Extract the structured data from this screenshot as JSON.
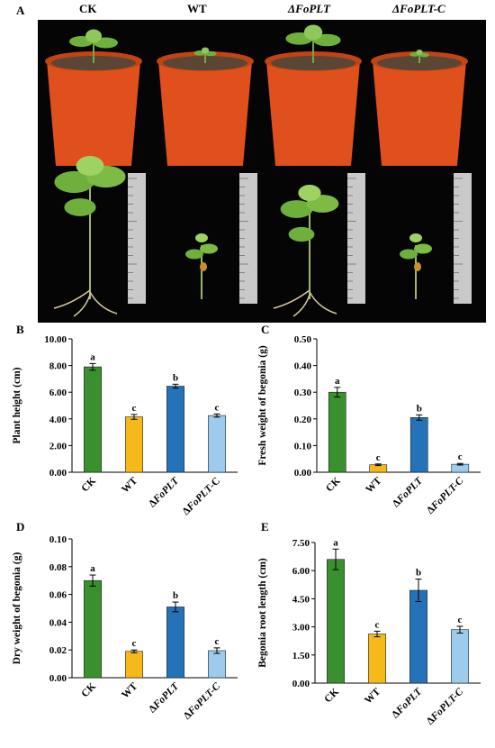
{
  "panelA": {
    "letter": "A",
    "labels": [
      "CK",
      "WT",
      "ΔFoPLT",
      "ΔFoPLT-C"
    ],
    "colors": {
      "background": "#050505",
      "pot": "#e0501c",
      "soil": "#5a4634",
      "leaf": "#6fb03c",
      "ruler": "#c9c9c9"
    }
  },
  "chart_data": [
    {
      "letter": "B",
      "type": "bar",
      "categories": [
        "CK",
        "WT",
        "ΔFoPLT",
        "ΔFoPLT-C"
      ],
      "values": [
        7.9,
        4.15,
        6.45,
        4.25
      ],
      "errors": [
        0.25,
        0.18,
        0.15,
        0.12
      ],
      "letters": [
        "a",
        "c",
        "b",
        "c"
      ],
      "colors": [
        "#3a8f2f",
        "#f6b91a",
        "#2473b8",
        "#9dcbee"
      ],
      "ylabel": "Plant height  (cm)",
      "ylim": [
        0,
        10
      ],
      "yticks": [
        "0.00",
        "2.00",
        "4.00",
        "6.00",
        "8.00",
        "10.00"
      ]
    },
    {
      "letter": "C",
      "type": "bar",
      "categories": [
        "CK",
        "WT",
        "ΔFoPLT",
        "ΔFoPLT-C"
      ],
      "values": [
        0.3,
        0.028,
        0.205,
        0.03
      ],
      "errors": [
        0.018,
        0.003,
        0.01,
        0.003
      ],
      "letters": [
        "a",
        "c",
        "b",
        "c"
      ],
      "colors": [
        "#3a8f2f",
        "#f6b91a",
        "#2473b8",
        "#9dcbee"
      ],
      "ylabel": "Fresh weight of begonia (g)",
      "ylim": [
        0,
        0.5
      ],
      "yticks": [
        "0.00",
        "0.10",
        "0.20",
        "0.30",
        "0.40",
        "0.50"
      ]
    },
    {
      "letter": "D",
      "type": "bar",
      "categories": [
        "CK",
        "WT",
        "ΔFoPLT",
        "ΔFoPLT-C"
      ],
      "values": [
        0.07,
        0.019,
        0.051,
        0.0195
      ],
      "errors": [
        0.004,
        0.001,
        0.0035,
        0.002
      ],
      "letters": [
        "a",
        "c",
        "b",
        "c"
      ],
      "colors": [
        "#3a8f2f",
        "#f6b91a",
        "#2473b8",
        "#9dcbee"
      ],
      "ylabel": "Dry weight of begonia (g)",
      "ylim": [
        0,
        0.1
      ],
      "yticks": [
        "0.00",
        "0.02",
        "0.04",
        "0.06",
        "0.08",
        "0.10"
      ]
    },
    {
      "letter": "E",
      "type": "bar",
      "categories": [
        "CK",
        "WT",
        "ΔFoPLT",
        "ΔFoPLT-C"
      ],
      "values": [
        6.6,
        2.62,
        4.95,
        2.85
      ],
      "errors": [
        0.55,
        0.15,
        0.6,
        0.18
      ],
      "letters": [
        "a",
        "c",
        "b",
        "c"
      ],
      "colors": [
        "#3a8f2f",
        "#f6b91a",
        "#2473b8",
        "#9dcbee"
      ],
      "ylabel": "Begonia root length (cm)",
      "ylim": [
        0,
        7.5
      ],
      "yticks": [
        "0.00",
        "1.50",
        "3.00",
        "4.50",
        "6.00",
        "7.50"
      ]
    }
  ]
}
